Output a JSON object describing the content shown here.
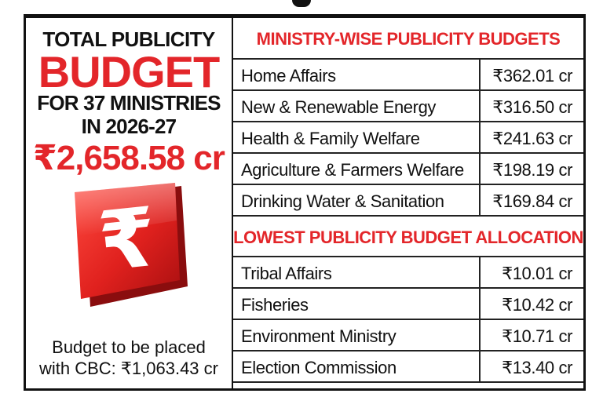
{
  "left_panel": {
    "line1": "TOTAL PUBLICITY",
    "line2": "BUDGET",
    "line3": "FOR 37 MINISTRIES",
    "line4": "IN 2026-27",
    "total": "₹2,658.58 cr",
    "note_line1": "Budget to be placed",
    "note_line2": "with CBC: ₹1,063.43 cr",
    "rupee_glyph": "₹"
  },
  "colors": {
    "accent": "#e3262a",
    "text": "#111111",
    "border": "#111111"
  },
  "chart_data": [
    {
      "type": "table",
      "title": "MINISTRY-WISE PUBLICITY BUDGETS",
      "rows": [
        {
          "name": "Home Affairs",
          "value": "₹362.01 cr"
        },
        {
          "name": "New & Renewable Energy",
          "value": "₹316.50 cr"
        },
        {
          "name": "Health & Family Welfare",
          "value": "₹241.63 cr"
        },
        {
          "name": "Agriculture & Farmers Welfare",
          "value": "₹198.19 cr"
        },
        {
          "name": "Drinking Water & Sanitation",
          "value": "₹169.84 cr"
        }
      ]
    },
    {
      "type": "table",
      "title": "LOWEST PUBLICITY BUDGET ALLOCATION",
      "rows": [
        {
          "name": "Tribal Affairs",
          "value": "₹10.01 cr"
        },
        {
          "name": "Fisheries",
          "value": "₹10.42 cr"
        },
        {
          "name": "Environment Ministry",
          "value": "₹10.71 cr"
        },
        {
          "name": "Election Commission",
          "value": "₹13.40 cr"
        }
      ]
    }
  ]
}
